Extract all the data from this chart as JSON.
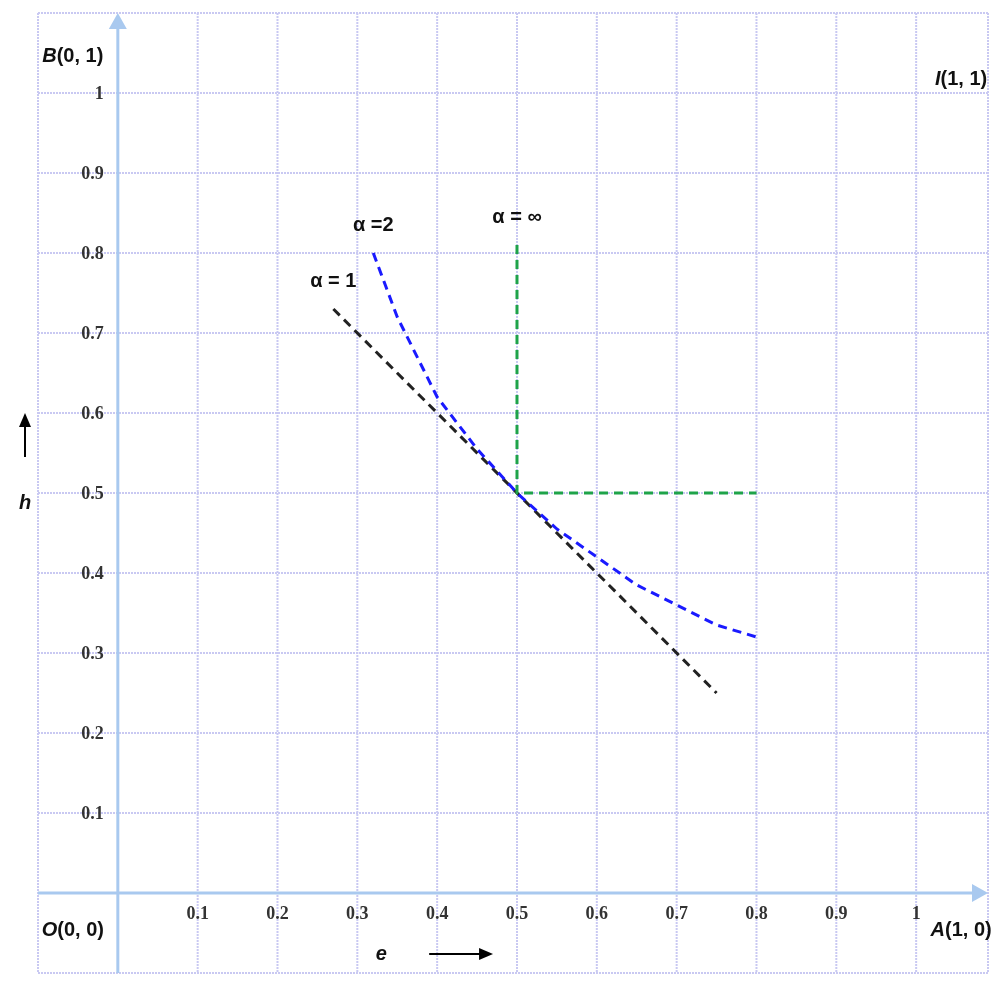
{
  "chart_data": {
    "type": "line",
    "xlabel": "e",
    "ylabel": "h",
    "xlim": [
      -0.1,
      1.09
    ],
    "ylim": [
      -0.1,
      1.1
    ],
    "xticks": [
      0.1,
      0.2,
      0.3,
      0.4,
      0.5,
      0.6,
      0.7,
      0.8,
      0.9,
      1
    ],
    "yticks": [
      0.1,
      0.2,
      0.3,
      0.4,
      0.5,
      0.6,
      0.7,
      0.8,
      0.9,
      1
    ],
    "grid": true,
    "line_style": "dashed",
    "series": [
      {
        "name": "α = 1",
        "color": "#222222",
        "x": [
          0.27,
          0.75
        ],
        "values": [
          0.73,
          0.25
        ]
      },
      {
        "name": "α =2",
        "color": "#1a1aff",
        "x": [
          0.32,
          0.35,
          0.4,
          0.45,
          0.5,
          0.55,
          0.6,
          0.65,
          0.7,
          0.75,
          0.8
        ],
        "values": [
          0.8,
          0.72,
          0.62,
          0.555,
          0.5,
          0.455,
          0.42,
          0.385,
          0.36,
          0.335,
          0.32
        ]
      },
      {
        "name": "α = ∞",
        "color": "#1fa34a",
        "x": [
          0.5,
          0.5,
          0.8
        ],
        "values": [
          0.81,
          0.5,
          0.5
        ]
      }
    ],
    "annotations": [
      "B(0, 1)",
      "I(1, 1)",
      "O(0, 0)",
      "A(1, 0)"
    ]
  }
}
